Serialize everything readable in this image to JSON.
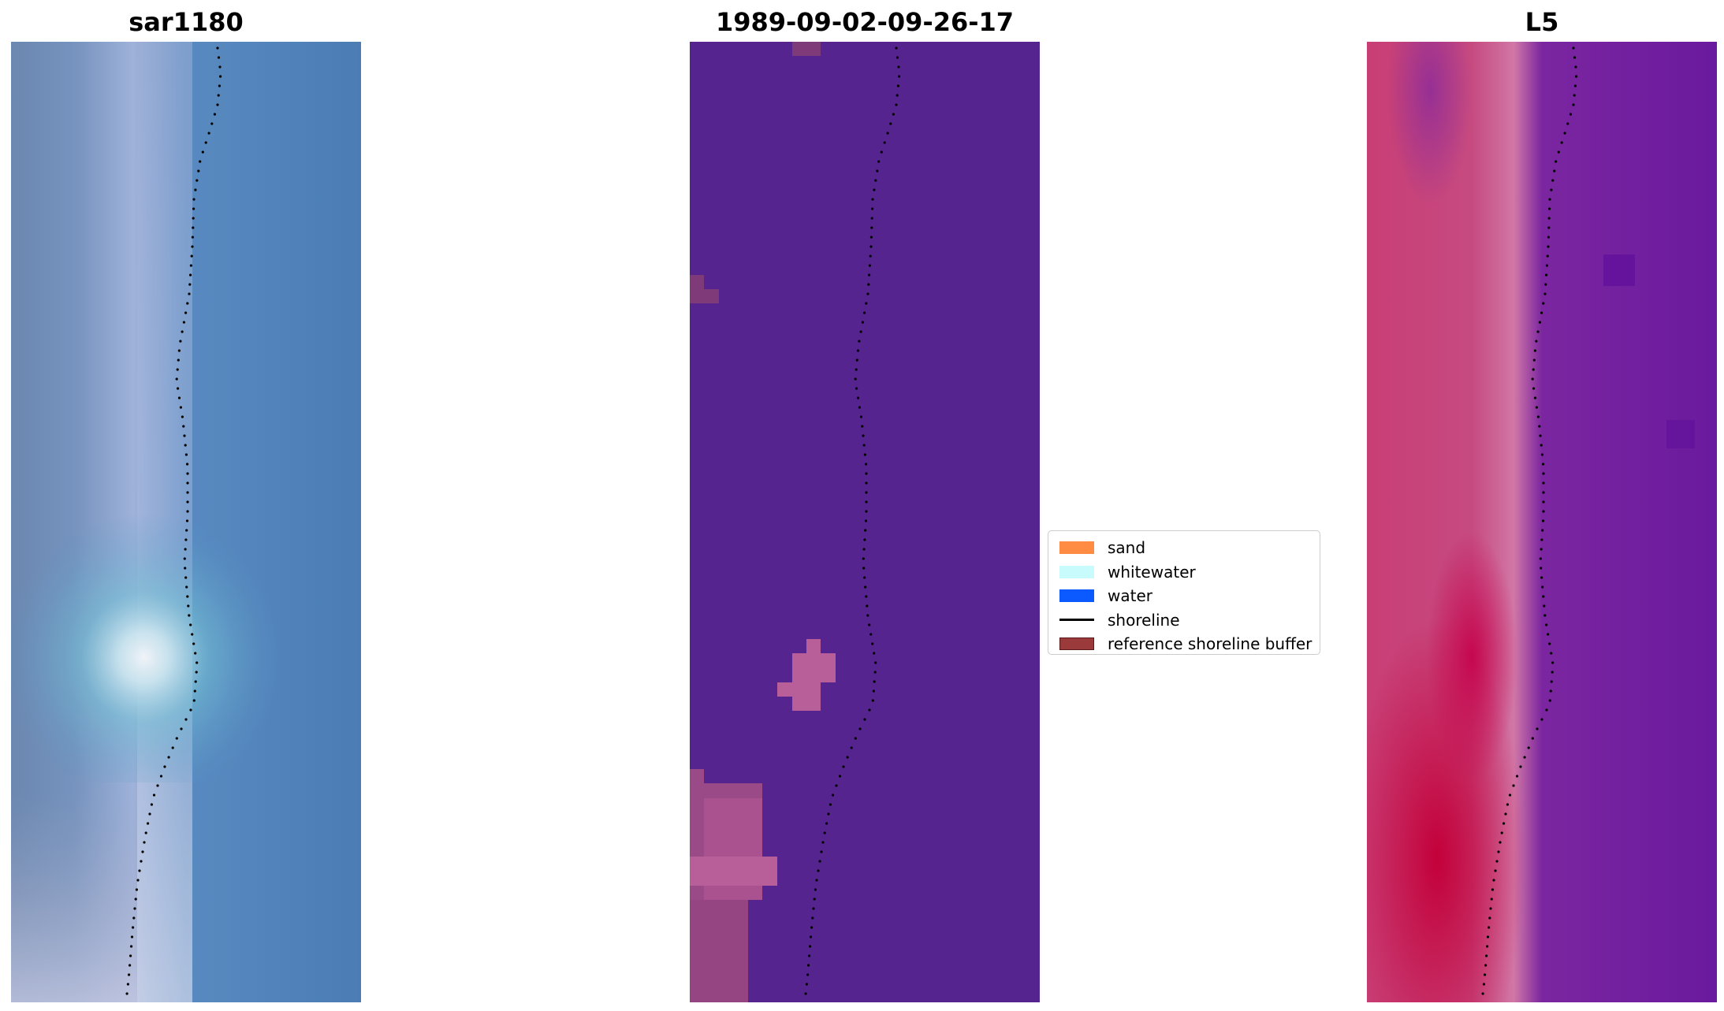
{
  "panels": [
    {
      "title": "sar1180"
    },
    {
      "title": "1989-09-02-09-26-17"
    },
    {
      "title": "L5"
    }
  ],
  "legend": {
    "items": [
      {
        "label": "sand",
        "color": "#ff8c42",
        "kind": "patch"
      },
      {
        "label": "whitewater",
        "color": "#c8fcfc",
        "kind": "patch"
      },
      {
        "label": "water",
        "color": "#0a5aff",
        "kind": "patch"
      },
      {
        "label": "shoreline",
        "color": "#000000",
        "kind": "line"
      },
      {
        "label": "reference shoreline buffer",
        "color": "#9b3a3a",
        "kind": "patch"
      }
    ]
  },
  "colors": {
    "classification_background": "#55248f",
    "classification_buffer": "#b85f9a",
    "classification_buffer_dark": "#7f3a7a"
  }
}
